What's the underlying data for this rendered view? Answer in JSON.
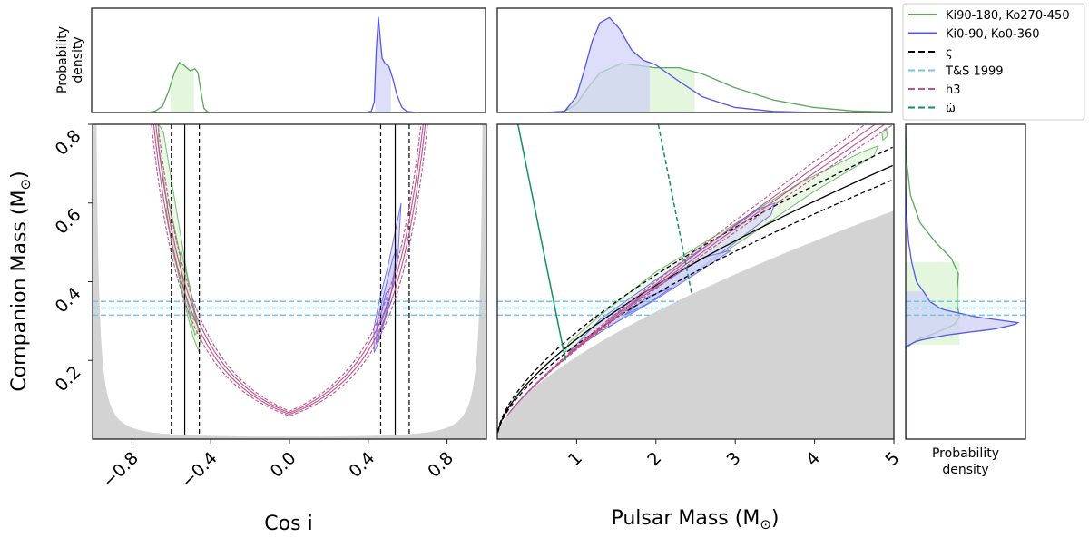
{
  "chart_data": [
    {
      "panel": "main-cosi",
      "type": "line",
      "xlabel": "Cos i",
      "ylabel": "Companion Mass (M⊙)",
      "xlim": [
        -1,
        1
      ],
      "ylim": [
        0,
        0.8
      ],
      "xticks": [
        "−0.8",
        "−0.4",
        "0.0",
        "0.4",
        "0.8"
      ],
      "xtick_values": [
        -0.8,
        -0.4,
        0.0,
        0.4,
        0.8
      ],
      "yticks": [
        "0.2",
        "0.4",
        "0.6",
        "0.8"
      ],
      "ytick_values": [
        0.2,
        0.4,
        0.6,
        0.8
      ],
      "varsigma_lines": {
        "solid": [
          -0.532,
          0.537
        ],
        "dashed": [
          -0.6,
          -0.458,
          0.463,
          0.608
        ]
      },
      "ts1999_mc": [
        0.315,
        0.333,
        0.35
      ],
      "contours": {
        "green": [
          [
            [
              -0.665,
              0.8
            ],
            [
              -0.64,
              0.78
            ],
            [
              -0.58,
              0.6
            ],
            [
              -0.52,
              0.42
            ],
            [
              -0.47,
              0.3
            ],
            [
              -0.452,
              0.255
            ],
            [
              -0.462,
              0.225
            ],
            [
              -0.49,
              0.26
            ],
            [
              -0.55,
              0.38
            ],
            [
              -0.61,
              0.56
            ],
            [
              -0.665,
              0.75
            ]
          ],
          [
            [
              -0.615,
              0.61
            ],
            [
              -0.56,
              0.48
            ],
            [
              -0.5,
              0.36
            ],
            [
              -0.462,
              0.275
            ],
            [
              -0.48,
              0.265
            ],
            [
              -0.53,
              0.35
            ],
            [
              -0.59,
              0.47
            ],
            [
              -0.625,
              0.58
            ]
          ],
          [
            [
              -0.55,
              0.48
            ],
            [
              -0.5,
              0.37
            ],
            [
              -0.478,
              0.3
            ],
            [
              -0.5,
              0.31
            ],
            [
              -0.535,
              0.38
            ],
            [
              -0.556,
              0.45
            ]
          ]
        ],
        "blue": [
          [
            [
              0.43,
              0.22
            ],
            [
              0.455,
              0.25
            ],
            [
              0.5,
              0.33
            ],
            [
              0.55,
              0.46
            ],
            [
              0.567,
              0.6
            ],
            [
              0.55,
              0.56
            ],
            [
              0.5,
              0.44
            ],
            [
              0.455,
              0.35
            ],
            [
              0.428,
              0.28
            ]
          ],
          [
            [
              0.44,
              0.245
            ],
            [
              0.48,
              0.3
            ],
            [
              0.52,
              0.38
            ],
            [
              0.545,
              0.485
            ],
            [
              0.525,
              0.46
            ],
            [
              0.48,
              0.37
            ],
            [
              0.445,
              0.3
            ]
          ],
          [
            [
              0.46,
              0.29
            ],
            [
              0.49,
              0.33
            ],
            [
              0.505,
              0.38
            ],
            [
              0.49,
              0.37
            ],
            [
              0.465,
              0.32
            ]
          ]
        ]
      }
    },
    {
      "panel": "main-mp",
      "type": "line",
      "xlabel": "Pulsar Mass (M⊙)",
      "xlim": [
        0,
        5
      ],
      "ylim": [
        0,
        0.8
      ],
      "xticks": [
        "1",
        "2",
        "3",
        "4",
        "5"
      ],
      "xtick_values": [
        1,
        2,
        3,
        4,
        5
      ],
      "varsigma_cosi": {
        "solid": 0.535,
        "dashed": [
          0.46,
          0.605
        ]
      },
      "omegadot_lines": {
        "solid": [
          [
            0.26,
            0.8
          ],
          [
            0.86,
            0.2
          ]
        ],
        "dashed": [
          [
            2.03,
            0.8
          ],
          [
            2.45,
            0.37
          ]
        ]
      },
      "contours": {
        "green": [
          [
            [
              0.85,
              0.22
            ],
            [
              1.5,
              0.3
            ],
            [
              2.3,
              0.4
            ],
            [
              3.2,
              0.52
            ],
            [
              4.0,
              0.63
            ],
            [
              4.75,
              0.72
            ],
            [
              4.8,
              0.745
            ],
            [
              4.6,
              0.73
            ],
            [
              3.8,
              0.65
            ],
            [
              2.9,
              0.535
            ],
            [
              2.0,
              0.425
            ],
            [
              1.3,
              0.315
            ],
            [
              0.9,
              0.245
            ]
          ],
          [
            [
              4.86,
              0.76
            ],
            [
              4.92,
              0.77
            ],
            [
              4.9,
              0.79
            ],
            [
              4.85,
              0.78
            ]
          ]
        ],
        "blue": [
          [
            [
              0.9,
              0.22
            ],
            [
              1.6,
              0.31
            ],
            [
              2.4,
              0.41
            ],
            [
              3.0,
              0.5
            ],
            [
              3.45,
              0.57
            ],
            [
              3.5,
              0.6
            ],
            [
              3.3,
              0.585
            ],
            [
              2.7,
              0.5
            ],
            [
              2.0,
              0.405
            ],
            [
              1.3,
              0.305
            ]
          ],
          [
            [
              1.4,
              0.285
            ],
            [
              2.0,
              0.355
            ],
            [
              2.5,
              0.42
            ],
            [
              2.95,
              0.48
            ],
            [
              2.6,
              0.462
            ],
            [
              1.9,
              0.372
            ],
            [
              1.4,
              0.305
            ]
          ],
          [
            [
              1.6,
              0.315
            ],
            [
              1.9,
              0.345
            ],
            [
              2.2,
              0.385
            ],
            [
              1.9,
              0.362
            ]
          ]
        ]
      }
    },
    {
      "panel": "top-cosi",
      "type": "area",
      "ylabel": "Probability density",
      "xlim": [
        -1,
        1
      ],
      "series": [
        {
          "name": "Ki90-180, Ko270-450",
          "x": [
            -0.72,
            -0.68,
            -0.64,
            -0.61,
            -0.58,
            -0.555,
            -0.53,
            -0.5,
            -0.475,
            -0.46,
            -0.445,
            -0.43,
            -0.41,
            -0.38
          ],
          "y": [
            0,
            0.01,
            0.06,
            0.2,
            0.38,
            0.48,
            0.45,
            0.4,
            0.42,
            0.38,
            0.2,
            0.04,
            0.005,
            0
          ],
          "shade": [
            -0.6,
            -0.48
          ]
        },
        {
          "name": "Ki0-90, Ko0-360",
          "x": [
            0.38,
            0.42,
            0.435,
            0.445,
            0.456,
            0.465,
            0.475,
            0.49,
            0.51,
            0.53,
            0.55,
            0.575,
            0.6,
            0.65
          ],
          "y": [
            0,
            0.01,
            0.1,
            0.6,
            0.91,
            0.72,
            0.52,
            0.47,
            0.44,
            0.32,
            0.17,
            0.05,
            0.01,
            0
          ],
          "shade": [
            0.44,
            0.52
          ]
        }
      ]
    },
    {
      "panel": "top-mp",
      "type": "area",
      "xlim": [
        0,
        5
      ],
      "series": [
        {
          "name": "Ki90-180, Ko270-450",
          "x": [
            0.6,
            0.85,
            1.0,
            1.15,
            1.3,
            1.57,
            1.8,
            2.0,
            2.3,
            2.6,
            3.0,
            3.5,
            4.0,
            4.5,
            5.0
          ],
          "y": [
            0,
            0.01,
            0.08,
            0.24,
            0.38,
            0.47,
            0.45,
            0.43,
            0.43,
            0.37,
            0.24,
            0.12,
            0.05,
            0.015,
            0.005
          ],
          "shade": [
            0.9,
            2.5
          ]
        },
        {
          "name": "Ki0-90, Ko0-360",
          "x": [
            0.6,
            0.85,
            1.0,
            1.1,
            1.2,
            1.3,
            1.42,
            1.55,
            1.7,
            1.85,
            2.0,
            2.3,
            2.6,
            3.0,
            3.5,
            4.0
          ],
          "y": [
            0,
            0.01,
            0.15,
            0.4,
            0.68,
            0.86,
            0.91,
            0.8,
            0.6,
            0.5,
            0.46,
            0.3,
            0.15,
            0.05,
            0.01,
            0
          ],
          "shade": [
            0.9,
            1.93
          ]
        }
      ]
    },
    {
      "panel": "side-mc",
      "type": "area",
      "xlabel": "Probability density",
      "ylim": [
        0,
        0.8
      ],
      "series": [
        {
          "name": "Ki90-180, Ko270-450",
          "mc": [
            0.23,
            0.25,
            0.27,
            0.29,
            0.31,
            0.34,
            0.38,
            0.42,
            0.46,
            0.5,
            0.55,
            0.62,
            0.7,
            0.78
          ],
          "density": [
            0,
            0.08,
            0.25,
            0.4,
            0.45,
            0.43,
            0.43,
            0.44,
            0.38,
            0.25,
            0.12,
            0.04,
            0.01,
            0
          ],
          "shade": [
            0.24,
            0.45
          ]
        },
        {
          "name": "Ki0-90, Ko0-360",
          "mc": [
            0.235,
            0.25,
            0.265,
            0.28,
            0.295,
            0.31,
            0.33,
            0.35,
            0.37,
            0.4,
            0.45,
            0.5,
            0.55,
            0.6,
            0.65
          ],
          "density": [
            0,
            0.1,
            0.35,
            0.75,
            0.96,
            0.6,
            0.3,
            0.2,
            0.16,
            0.09,
            0.05,
            0.025,
            0.012,
            0.005,
            0
          ],
          "shade": [
            0.24,
            0.375
          ]
        }
      ]
    }
  ],
  "legend": {
    "position": "top-right",
    "entries": [
      {
        "label": "Ki90-180, Ko270-450",
        "color": "#5aa85a",
        "style": "solid"
      },
      {
        "label": "Ki0-90, Ko0-360",
        "color": "#5555ee",
        "style": "solid"
      },
      {
        "label": "ς",
        "color": "#000000",
        "style": "dashed"
      },
      {
        "label": "T&S 1999",
        "color": "#6cc6ee",
        "style": "dashed"
      },
      {
        "label": "h3",
        "color": "#c0508a",
        "style": "dashed"
      },
      {
        "label": "ω̇",
        "color": "#0f8f66",
        "style": "dashed"
      }
    ]
  },
  "colors": {
    "green": "#5aa85a",
    "green_fill": "#d8f2d0",
    "blue": "#5555ee",
    "blue_fill": "#cfd0f6",
    "h3": "#c0508a",
    "ts": "#6cc6ee",
    "omegadot": "#0f8f66",
    "forbidden": "#d3d3d3"
  },
  "labels": {
    "top_ylabel_1": "Probability",
    "top_ylabel_2": "density",
    "side_xlabel_1": "Probability",
    "side_xlabel_2": "density",
    "cosi": "Cos i",
    "mp": "Pulsar Mass (M",
    "mc": "Companion Mass (M",
    "sun": "⊙",
    "close": ")"
  }
}
